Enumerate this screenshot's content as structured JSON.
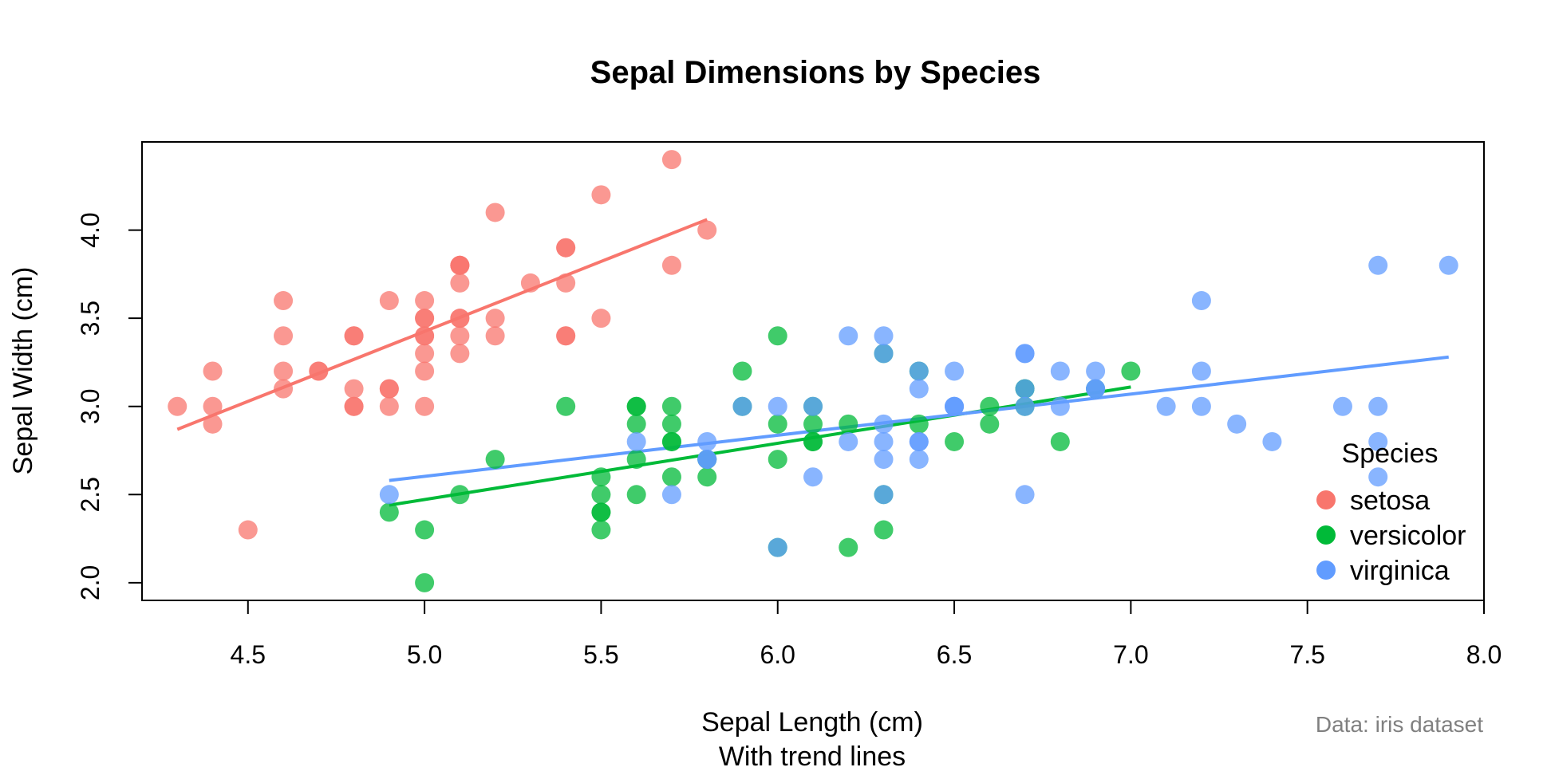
{
  "chart_data": {
    "type": "scatter",
    "title": "Sepal Dimensions by Species",
    "xlabel": "Sepal Length (cm)",
    "xlabel_sub": "With trend lines",
    "ylabel": "Sepal Width (cm)",
    "caption": "Data: iris dataset",
    "xlim": [
      4.2,
      8.0
    ],
    "ylim": [
      1.9,
      4.5
    ],
    "x_ticks": [
      "4.5",
      "5.0",
      "5.5",
      "6.0",
      "6.5",
      "7.0",
      "7.5",
      "8.0"
    ],
    "y_ticks": [
      "2.0",
      "2.5",
      "3.0",
      "3.5",
      "4.0"
    ],
    "grid": false,
    "legend": {
      "title": "Species",
      "position": "bottom-right"
    },
    "series": [
      {
        "name": "setosa",
        "color": "#F8766D",
        "trend": {
          "x": [
            4.3,
            5.8
          ],
          "y": [
            2.87,
            4.06
          ]
        },
        "points": [
          [
            5.1,
            3.5
          ],
          [
            4.9,
            3.0
          ],
          [
            4.7,
            3.2
          ],
          [
            4.6,
            3.1
          ],
          [
            5.0,
            3.6
          ],
          [
            5.4,
            3.9
          ],
          [
            4.6,
            3.4
          ],
          [
            5.0,
            3.4
          ],
          [
            4.4,
            2.9
          ],
          [
            4.9,
            3.1
          ],
          [
            5.4,
            3.7
          ],
          [
            4.8,
            3.4
          ],
          [
            4.8,
            3.0
          ],
          [
            4.3,
            3.0
          ],
          [
            5.8,
            4.0
          ],
          [
            5.7,
            4.4
          ],
          [
            5.4,
            3.9
          ],
          [
            5.1,
            3.5
          ],
          [
            5.7,
            3.8
          ],
          [
            5.1,
            3.8
          ],
          [
            5.4,
            3.4
          ],
          [
            5.1,
            3.7
          ],
          [
            4.6,
            3.6
          ],
          [
            5.1,
            3.3
          ],
          [
            4.8,
            3.4
          ],
          [
            5.0,
            3.0
          ],
          [
            5.0,
            3.4
          ],
          [
            5.2,
            3.5
          ],
          [
            5.2,
            3.4
          ],
          [
            4.7,
            3.2
          ],
          [
            4.8,
            3.1
          ],
          [
            5.4,
            3.4
          ],
          [
            5.2,
            4.1
          ],
          [
            5.5,
            4.2
          ],
          [
            4.9,
            3.1
          ],
          [
            5.0,
            3.2
          ],
          [
            5.5,
            3.5
          ],
          [
            4.9,
            3.6
          ],
          [
            4.4,
            3.0
          ],
          [
            5.1,
            3.4
          ],
          [
            5.0,
            3.5
          ],
          [
            4.5,
            2.3
          ],
          [
            4.4,
            3.2
          ],
          [
            5.0,
            3.5
          ],
          [
            5.1,
            3.8
          ],
          [
            4.8,
            3.0
          ],
          [
            5.1,
            3.8
          ],
          [
            4.6,
            3.2
          ],
          [
            5.3,
            3.7
          ],
          [
            5.0,
            3.3
          ]
        ]
      },
      {
        "name": "versicolor",
        "color": "#00BA38",
        "trend": {
          "x": [
            4.9,
            7.0
          ],
          "y": [
            2.44,
            3.11
          ]
        },
        "points": [
          [
            7.0,
            3.2
          ],
          [
            6.4,
            3.2
          ],
          [
            6.9,
            3.1
          ],
          [
            5.5,
            2.3
          ],
          [
            6.5,
            2.8
          ],
          [
            5.7,
            2.8
          ],
          [
            6.3,
            3.3
          ],
          [
            4.9,
            2.4
          ],
          [
            6.6,
            2.9
          ],
          [
            5.2,
            2.7
          ],
          [
            5.0,
            2.0
          ],
          [
            5.9,
            3.0
          ],
          [
            6.0,
            2.2
          ],
          [
            6.1,
            2.9
          ],
          [
            5.6,
            2.9
          ],
          [
            6.7,
            3.1
          ],
          [
            5.6,
            3.0
          ],
          [
            5.8,
            2.7
          ],
          [
            6.2,
            2.2
          ],
          [
            5.6,
            2.5
          ],
          [
            5.9,
            3.2
          ],
          [
            6.1,
            2.8
          ],
          [
            6.3,
            2.5
          ],
          [
            6.1,
            2.8
          ],
          [
            6.4,
            2.9
          ],
          [
            6.6,
            3.0
          ],
          [
            6.8,
            2.8
          ],
          [
            6.7,
            3.0
          ],
          [
            6.0,
            2.9
          ],
          [
            5.7,
            2.6
          ],
          [
            5.5,
            2.4
          ],
          [
            5.5,
            2.4
          ],
          [
            5.8,
            2.7
          ],
          [
            6.0,
            2.7
          ],
          [
            5.4,
            3.0
          ],
          [
            6.0,
            3.4
          ],
          [
            6.7,
            3.1
          ],
          [
            6.3,
            2.3
          ],
          [
            5.6,
            3.0
          ],
          [
            5.5,
            2.5
          ],
          [
            5.5,
            2.6
          ],
          [
            6.1,
            3.0
          ],
          [
            5.8,
            2.6
          ],
          [
            5.0,
            2.3
          ],
          [
            5.6,
            2.7
          ],
          [
            5.7,
            3.0
          ],
          [
            5.7,
            2.9
          ],
          [
            6.2,
            2.9
          ],
          [
            5.1,
            2.5
          ],
          [
            5.7,
            2.8
          ]
        ]
      },
      {
        "name": "virginica",
        "color": "#619CFF",
        "trend": {
          "x": [
            4.9,
            7.9
          ],
          "y": [
            2.58,
            3.28
          ]
        },
        "points": [
          [
            6.3,
            3.3
          ],
          [
            5.8,
            2.7
          ],
          [
            7.1,
            3.0
          ],
          [
            6.3,
            2.9
          ],
          [
            6.5,
            3.0
          ],
          [
            7.6,
            3.0
          ],
          [
            4.9,
            2.5
          ],
          [
            7.3,
            2.9
          ],
          [
            6.7,
            2.5
          ],
          [
            7.2,
            3.6
          ],
          [
            6.5,
            3.2
          ],
          [
            6.4,
            2.7
          ],
          [
            6.8,
            3.0
          ],
          [
            5.7,
            2.5
          ],
          [
            5.8,
            2.8
          ],
          [
            6.4,
            3.2
          ],
          [
            6.5,
            3.0
          ],
          [
            7.7,
            3.8
          ],
          [
            7.7,
            2.6
          ],
          [
            6.0,
            2.2
          ],
          [
            6.9,
            3.2
          ],
          [
            5.6,
            2.8
          ],
          [
            7.7,
            2.8
          ],
          [
            6.3,
            2.7
          ],
          [
            6.7,
            3.3
          ],
          [
            7.2,
            3.2
          ],
          [
            6.2,
            2.8
          ],
          [
            6.1,
            3.0
          ],
          [
            6.4,
            2.8
          ],
          [
            7.2,
            3.0
          ],
          [
            7.4,
            2.8
          ],
          [
            7.9,
            3.8
          ],
          [
            6.4,
            2.8
          ],
          [
            6.3,
            2.8
          ],
          [
            6.1,
            2.6
          ],
          [
            7.7,
            3.0
          ],
          [
            6.3,
            3.4
          ],
          [
            6.4,
            3.1
          ],
          [
            6.0,
            3.0
          ],
          [
            6.9,
            3.1
          ],
          [
            6.7,
            3.1
          ],
          [
            6.9,
            3.1
          ],
          [
            5.8,
            2.7
          ],
          [
            6.8,
            3.2
          ],
          [
            6.7,
            3.3
          ],
          [
            6.7,
            3.0
          ],
          [
            6.3,
            2.5
          ],
          [
            6.5,
            3.0
          ],
          [
            6.2,
            3.4
          ],
          [
            5.9,
            3.0
          ]
        ]
      }
    ]
  }
}
